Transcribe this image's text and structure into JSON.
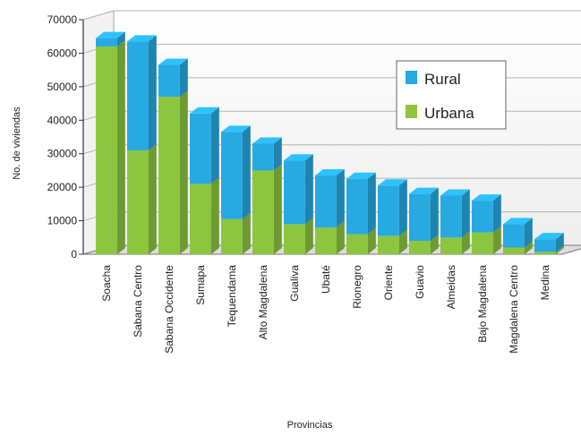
{
  "chart_data": {
    "type": "bar",
    "stacked": true,
    "three_d": true,
    "title": "",
    "xlabel": "Provincias",
    "ylabel": "No. de viviendas",
    "ylim": [
      0,
      70000
    ],
    "yticks": [
      0,
      10000,
      20000,
      30000,
      40000,
      50000,
      60000,
      70000
    ],
    "grid": true,
    "legend_position": "upper-right",
    "categories": [
      "Soacha",
      "Sabana Centro",
      "Sabana Occidente",
      "Sumapa",
      "Tequendama",
      "Alto Magdalena",
      "Gualiva",
      "Ubaté",
      "Rionegro",
      "Oriente",
      "Guavio",
      "Almeidas",
      "Bajo Magdalena",
      "Magdalena Centro",
      "Medina"
    ],
    "series": [
      {
        "name": "Urbana",
        "color": "#8cc63f",
        "values": [
          62000,
          31000,
          47000,
          21000,
          10500,
          25000,
          9000,
          8000,
          6000,
          5500,
          4000,
          5000,
          6500,
          2000,
          700
        ]
      },
      {
        "name": "Rural",
        "color": "#27a9e1",
        "values": [
          2500,
          32500,
          9500,
          21000,
          26000,
          8000,
          19000,
          15500,
          16500,
          15000,
          14000,
          12500,
          9500,
          7000,
          3800
        ]
      }
    ],
    "legend": [
      "Rural",
      "Urbana"
    ]
  },
  "colors": {
    "urbana": "#8cc63f",
    "rural": "#27a9e1",
    "grid": "#b8b8b8",
    "wall": "#f5f5f5"
  }
}
